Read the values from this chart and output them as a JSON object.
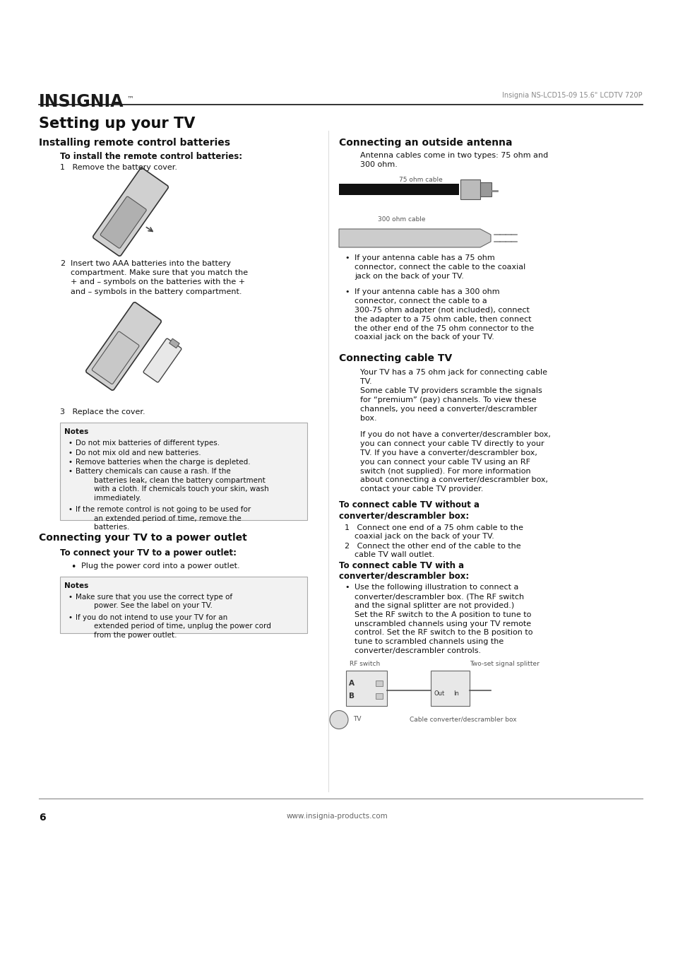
{
  "bg_color": "#ffffff",
  "header_right": "Insignia NS-LCD15-09 15.6\" LCDTV 720P",
  "main_title": "Setting up your TV",
  "section1_title": "Installing remote control batteries",
  "section1_sub": "To install the remote control batteries:",
  "step1": "1   Remove the battery cover.",
  "step2_label": "2",
  "step2_text": "Insert two AAA batteries into the battery\ncompartment. Make sure that you match the\n+ and – symbols on the batteries with the +\nand – symbols in the battery compartment.",
  "step3": "3   Replace the cover.",
  "notes_title": "Notes",
  "notes_bullets": [
    "Do not mix batteries of different types.",
    "Do not mix old and new batteries.",
    "Remove batteries when the charge is depleted.",
    "Battery chemicals can cause a rash. If the batteries leak, clean the battery compartment with a cloth. If chemicals touch your skin, wash immediately.",
    "If the remote control is not going to be used for an extended period of time, remove the batteries."
  ],
  "section2_title": "Connecting your TV to a power outlet",
  "section2_sub": "To connect your TV to a power outlet:",
  "section2_bullet": "Plug the power cord into a power outlet.",
  "notes2_title": "Notes",
  "notes2_bullets": [
    "Make sure that you use the correct type of power. See the label on your TV.",
    "If you do not intend to use your TV for an extended period of time, unplug the power cord from the power outlet."
  ],
  "right_section1_title": "Connecting an outside antenna",
  "right_s1_text": "Antenna cables come in two types: 75 ohm and\n300 ohm.",
  "cable75_label": "75 ohm cable",
  "cable300_label": "300 ohm cable",
  "right_s1_bullets": [
    "If your antenna cable has a 75 ohm\nconnector, connect the cable to the coaxial\njack on the back of your TV.",
    "If your antenna cable has a 300 ohm\nconnector, connect the cable to a\n300-75 ohm adapter (not included), connect\nthe adapter to a 75 ohm cable, then connect\nthe other end of the 75 ohm connector to the\ncoaxial jack on the back of your TV."
  ],
  "right_section2_title": "Connecting cable TV",
  "right_s2_intro": "Your TV has a 75 ohm jack for connecting cable\nTV.",
  "right_s2_para1": "Some cable TV providers scramble the signals\nfor “premium” (pay) channels. To view these\nchannels, you need a converter/descrambler\nbox.",
  "right_s2_para2": "If you do not have a converter/descrambler box,\nyou can connect your cable TV directly to your\nTV. If you have a converter/descrambler box,\nyou can connect your cable TV using an RF\nswitch (not supplied). For more information\nabout connecting a converter/descrambler box,\ncontact your cable TV provider.",
  "right_sub1_bold_line1": "To connect cable TV without a",
  "right_sub1_bold_line2": "converter/descrambler box:",
  "right_sub1_step1": "1   Connect one end of a 75 ohm cable to the\n    coaxial jack on the back of your TV.",
  "right_sub1_step2": "2   Connect the other end of the cable to the\n    cable TV wall outlet.",
  "right_sub2_bold_line1": "To connect cable TV with a",
  "right_sub2_bold_line2": "converter/descrambler box:",
  "right_sub2_bullet": "Use the following illustration to connect a\nconverter/descrambler box. (The RF switch\nand the signal splitter are not provided.)\nSet the RF switch to the A position to tune to\nunscrambled channels using your TV remote\ncontrol. Set the RF switch to the B position to\ntune to scrambled channels using the\nconverter/descrambler controls.",
  "rf_label": "RF switch",
  "two_set_label": "Two-set signal splitter",
  "tv_label": "TV",
  "cable_box_label": "Cable converter/descrambler box",
  "footer_page": "6",
  "footer_url": "www.insignia-products.com"
}
